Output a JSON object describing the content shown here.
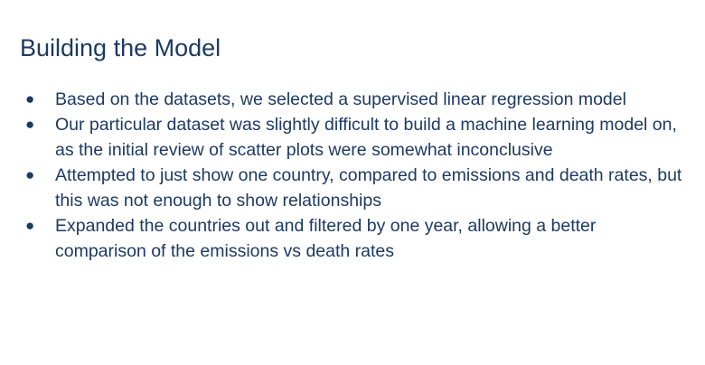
{
  "slide": {
    "title": "Building the Model",
    "bullets": [
      "Based on the datasets, we selected a supervised linear regression model",
      "Our particular dataset was slightly difficult to build a machine learning model on, as the initial review of scatter plots were somewhat inconclusive",
      "Attempted to just show one country, compared to emissions and death rates, but this was not enough to show relationships",
      "Expanded the countries out and filtered by one year, allowing a better comparison of the emissions vs death rates"
    ],
    "bullet_symbol": "●",
    "text_color": "#1c3a63",
    "background_color": "#ffffff"
  }
}
